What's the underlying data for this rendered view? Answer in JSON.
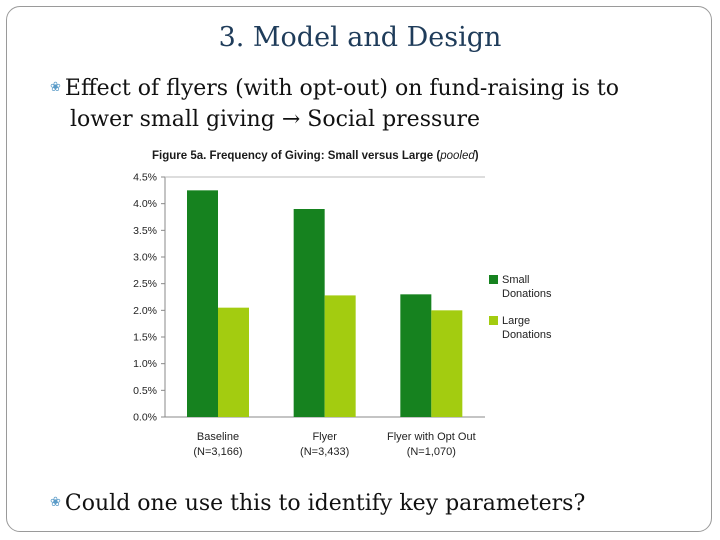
{
  "slide": {
    "title": "3. Model and Design",
    "bullet1_line1": "Effect of flyers (with opt-out) on fund-raising is to",
    "bullet1_line2_pre": "lower small giving",
    "arrow": "→",
    "bullet1_line2_post": "Social pressure",
    "bullet2": "Could one use this to identify key parameters?",
    "bullet_icon": "ornament-bullet-icon"
  },
  "chart_data": {
    "type": "bar",
    "title": "Figure 5a. Frequency of Giving: Small versus Large (",
    "title_italic": "pooled",
    "title_end": ")",
    "categories": [
      "Baseline",
      "Flyer",
      "Flyer with Opt Out"
    ],
    "category_sublabels": [
      "(N=3,166)",
      "(N=3,433)",
      "(N=1,070)"
    ],
    "series": [
      {
        "name": "Small Donations",
        "name_lines": [
          "Small",
          "Donations"
        ],
        "color": "#16821f",
        "values": [
          4.25,
          3.9,
          2.3
        ]
      },
      {
        "name": "Large Donations",
        "name_lines": [
          "Large",
          "Donations"
        ],
        "color": "#a3cc10",
        "values": [
          2.05,
          2.28,
          2.0
        ]
      }
    ],
    "ylim": [
      0,
      4.5
    ],
    "yticks": [
      0,
      0.5,
      1.0,
      1.5,
      2.0,
      2.5,
      3.0,
      3.5,
      4.0,
      4.5
    ],
    "ytick_labels": [
      "0.0%",
      "0.5%",
      "1.0%",
      "1.5%",
      "2.0%",
      "2.5%",
      "3.0%",
      "3.5%",
      "4.0%",
      "4.5%"
    ],
    "grid": false,
    "legend_position": "right"
  }
}
